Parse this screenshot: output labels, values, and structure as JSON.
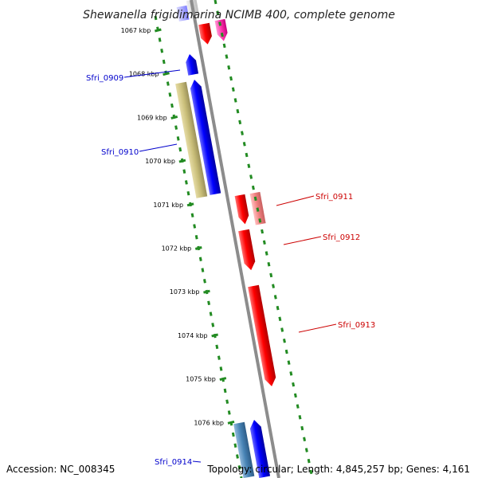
{
  "title": "Shewanella frigidimarina NCIMB 400, complete genome",
  "ticks": [
    "1067 kbp",
    "1068 kbp",
    "1069 kbp",
    "1070 kbp",
    "1071 kbp",
    "1072 kbp",
    "1073 kbp",
    "1074 kbp",
    "1075 kbp",
    "1076 kbp"
  ],
  "genes": [
    {
      "label": "Sfri_0909",
      "strand": "reverse",
      "color": "#0000cc"
    },
    {
      "label": "Sfri_0910",
      "strand": "reverse",
      "color": "#0000cc"
    },
    {
      "label": "Sfri_0911",
      "strand": "forward",
      "color": "#cc0000"
    },
    {
      "label": "Sfri_0912",
      "strand": "forward",
      "color": "#cc0000"
    },
    {
      "label": "Sfri_0913",
      "strand": "forward",
      "color": "#cc0000"
    },
    {
      "label": "Sfri_0914",
      "strand": "reverse",
      "color": "#0000cc"
    }
  ],
  "colors": {
    "forward": "#ff0000",
    "forward_light": "#f08080",
    "forward_pink": "#ff33aa",
    "reverse": "#0000ff",
    "reverse_olive": "#c8bd78",
    "reverse_steel": "#4682b4",
    "backbone": "#8c8c8c",
    "dots": "#228b22",
    "forward_label": "#cc0000",
    "reverse_label": "#0000cc"
  },
  "footer": {
    "accession": "Accession: NC_008345",
    "topology": "Topology: circular; Length: 4,845,257 bp; Genes: 4,161"
  }
}
